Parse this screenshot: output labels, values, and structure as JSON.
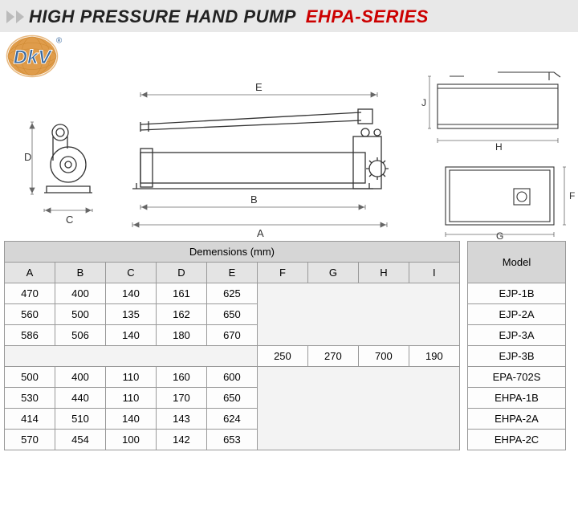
{
  "header": {
    "main": "HIGH PRESSURE HAND PUMP",
    "series": "EHPA-SERIES"
  },
  "diagram": {
    "labels": [
      "A",
      "B",
      "C",
      "D",
      "E",
      "F",
      "G",
      "H",
      "J"
    ]
  },
  "logo": {
    "text": "DkV",
    "superscript": "®",
    "orange": "#d98b2b",
    "blue": "#3a6aa0",
    "white": "#ffffff"
  },
  "table": {
    "dim_header": "Demensions (mm)",
    "model_header": "Model",
    "columns": [
      "A",
      "B",
      "C",
      "D",
      "E",
      "F",
      "G",
      "H",
      "I"
    ],
    "rows": [
      {
        "vals": [
          "470",
          "400",
          "140",
          "161",
          "625",
          "",
          "",
          "",
          ""
        ],
        "model": "EJP-1B"
      },
      {
        "vals": [
          "560",
          "500",
          "135",
          "162",
          "650",
          "",
          "",
          "",
          ""
        ],
        "model": "EJP-2A"
      },
      {
        "vals": [
          "586",
          "506",
          "140",
          "180",
          "670",
          "",
          "",
          "",
          ""
        ],
        "model": "EJP-3A"
      },
      {
        "vals": [
          "",
          "",
          "",
          "",
          "",
          "250",
          "270",
          "700",
          "190"
        ],
        "model": "EJP-3B"
      },
      {
        "vals": [
          "500",
          "400",
          "110",
          "160",
          "600",
          "",
          "",
          "",
          ""
        ],
        "model": "EPA-702S"
      },
      {
        "vals": [
          "530",
          "440",
          "110",
          "170",
          "650",
          "",
          "",
          "",
          ""
        ],
        "model": "EHPA-1B"
      },
      {
        "vals": [
          "414",
          "510",
          "140",
          "143",
          "624",
          "",
          "",
          "",
          ""
        ],
        "model": "EHPA-2A"
      },
      {
        "vals": [
          "570",
          "454",
          "100",
          "142",
          "653",
          "",
          "",
          "",
          ""
        ],
        "model": "EHPA-2C"
      }
    ]
  },
  "styling": {
    "header_bg": "#e8e8e8",
    "series_color": "#c00",
    "table_border": "#999",
    "table_header_bg": "#d6d6d6",
    "table_subheader_bg": "#e4e4e4",
    "table_empty_bg": "#f3f3f3"
  }
}
